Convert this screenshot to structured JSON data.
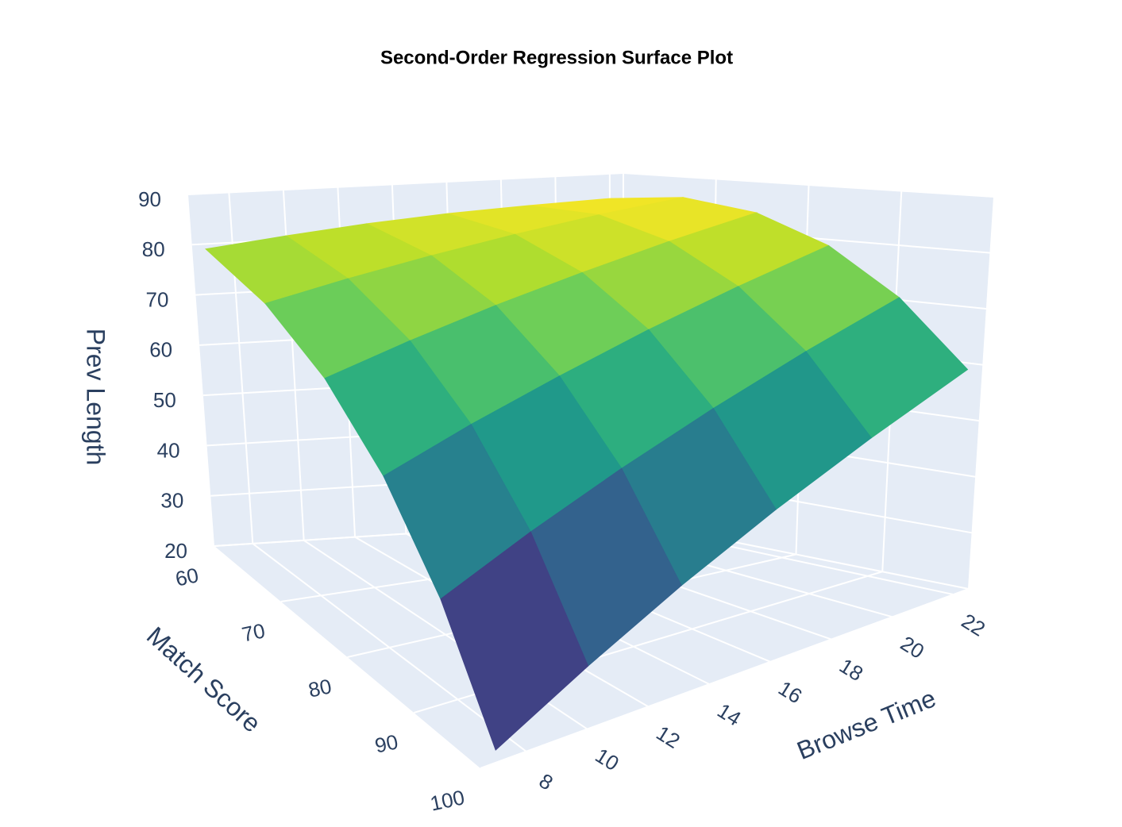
{
  "chart_data": {
    "type": "surface",
    "title": "Second-Order Regression Surface Plot",
    "xaxis_title": "Browse Time",
    "yaxis_title": "Match Score",
    "zaxis_title": "Prev Length",
    "x": [
      7,
      10,
      13,
      16,
      19,
      22
    ],
    "y": [
      60,
      68,
      76,
      84,
      92,
      100
    ],
    "z": [
      [
        79.0,
        80.8,
        82.4,
        83.6,
        84.4,
        85.0
      ],
      [
        74.0,
        77.1,
        79.9,
        82.4,
        84.6,
        86.4
      ],
      [
        65.8,
        70.2,
        74.3,
        78.0,
        81.5,
        84.6
      ],
      [
        54.4,
        60.1,
        65.4,
        70.5,
        75.2,
        79.6
      ],
      [
        39.8,
        46.8,
        53.4,
        59.7,
        65.7,
        71.4
      ],
      [
        22.0,
        30.2,
        38.2,
        45.8,
        53.0,
        60.0
      ]
    ],
    "xlim": [
      6.5,
      22.5
    ],
    "xticks": [
      8,
      10,
      12,
      14,
      16,
      18,
      20,
      22
    ],
    "ylim": [
      60,
      100
    ],
    "yticks": [
      60,
      70,
      80,
      90,
      100
    ],
    "zlim": [
      20,
      90
    ],
    "zticks": [
      20,
      30,
      40,
      50,
      60,
      70,
      80,
      90
    ],
    "colorscale": [
      "#440154",
      "#482878",
      "#3e4989",
      "#31688e",
      "#26828e",
      "#1f9e89",
      "#35b779",
      "#6ece58",
      "#b5de2b",
      "#fde725"
    ],
    "grid": true
  }
}
